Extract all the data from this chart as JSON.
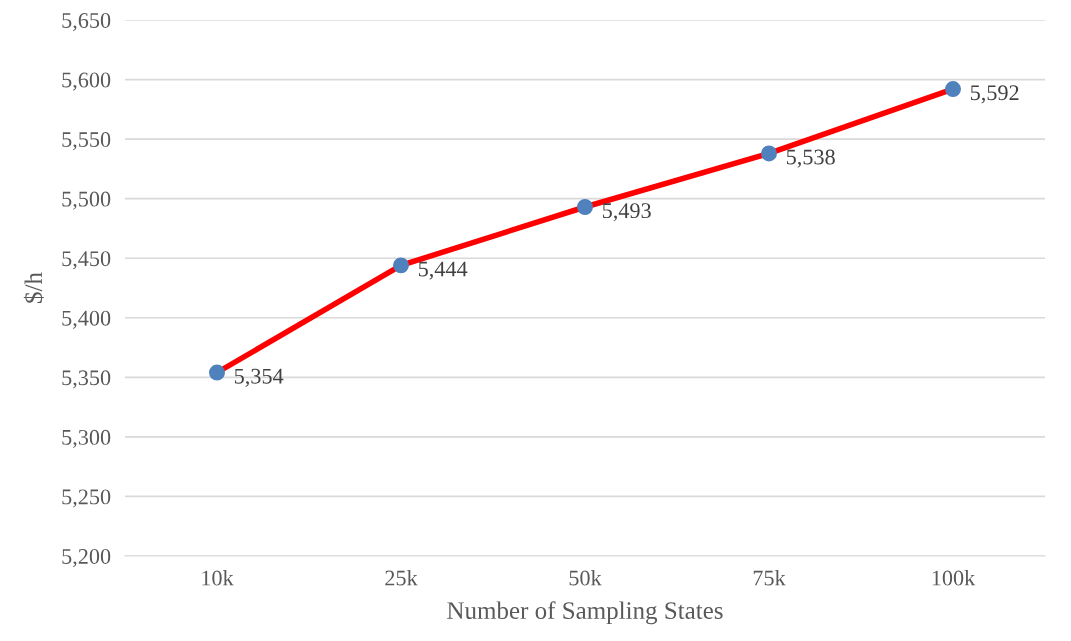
{
  "chart_data": {
    "type": "line",
    "xlabel": "Number of Sampling States",
    "ylabel": "$/h",
    "categories": [
      "10k",
      "25k",
      "50k",
      "75k",
      "100k"
    ],
    "series": [
      {
        "color": "#ff0000",
        "colors": [
          "#4f81bd",
          "#4f81bd",
          "#4f81bd",
          "#4f81bd",
          "#4f81bd"
        ],
        "values": [
          5354,
          5444,
          5493,
          5538,
          5592
        ],
        "value_labels": [
          "5,354",
          "5,444",
          "5,493",
          "5,538",
          "5,592"
        ]
      }
    ],
    "ylim": [
      5200,
      5650
    ],
    "yticks": [
      {
        "value": 5200,
        "label": "5,200"
      },
      {
        "value": 5250,
        "label": "5,250"
      },
      {
        "value": 5300,
        "label": "5,300"
      },
      {
        "value": 5350,
        "label": "5,350"
      },
      {
        "value": 5400,
        "label": "5,400"
      },
      {
        "value": 5450,
        "label": "5,450"
      },
      {
        "value": 5500,
        "label": "5,500"
      },
      {
        "value": 5550,
        "label": "5,550"
      },
      {
        "value": 5600,
        "label": "5,600"
      },
      {
        "value": 5650,
        "label": "5,650"
      }
    ],
    "grid": "y",
    "marker": "circle",
    "line_style": "solid",
    "legend": false
  }
}
